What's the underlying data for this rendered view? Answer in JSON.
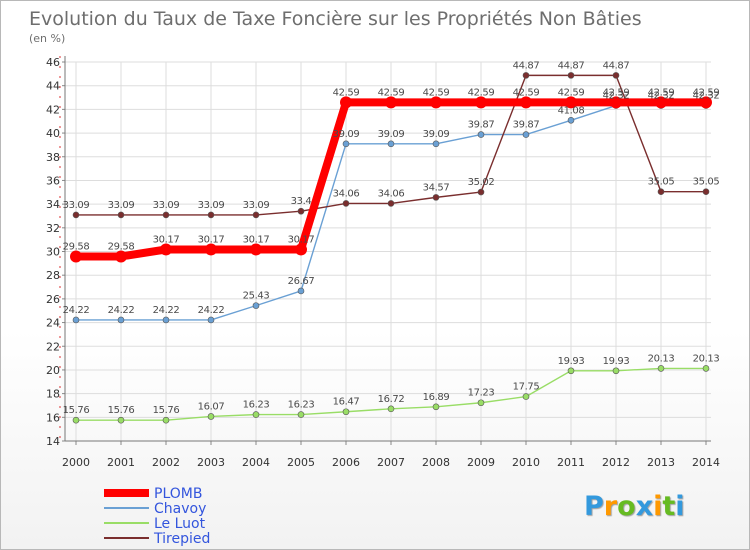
{
  "chart_data": {
    "type": "line",
    "title": "Evolution du Taux de Taxe Foncière sur les Propriétés Non Bâties",
    "ylabel": "(en %)",
    "x": [
      "2000",
      "2001",
      "2002",
      "2003",
      "2004",
      "2005",
      "2006",
      "2007",
      "2008",
      "2009",
      "2010",
      "2011",
      "2012",
      "2013",
      "2014"
    ],
    "ylim": [
      14,
      46
    ],
    "yticks": [
      14,
      16,
      18,
      20,
      22,
      24,
      26,
      28,
      30,
      32,
      34,
      36,
      38,
      40,
      42,
      44,
      46
    ],
    "grid": true,
    "legend_position": "bottom-left",
    "series": [
      {
        "name": "PLOMB",
        "color": "#ff0000",
        "values": [
          29.58,
          29.58,
          30.17,
          30.17,
          30.17,
          30.17,
          42.59,
          42.59,
          42.59,
          42.59,
          42.59,
          42.59,
          42.59,
          42.59,
          42.59
        ],
        "labels": [
          "29.58",
          "29.58",
          "30.17",
          "30.17",
          "30.17",
          "30.17",
          "42.59",
          "42.59",
          "42.59",
          "42.59",
          "42.59",
          "42.59",
          "42.59",
          "42.59",
          "42.59"
        ]
      },
      {
        "name": "Chavoy",
        "color": "#6aa0d4",
        "values": [
          24.22,
          24.22,
          24.22,
          24.22,
          25.43,
          26.67,
          39.09,
          39.09,
          39.09,
          39.87,
          39.87,
          41.08,
          42.32,
          42.32,
          42.32
        ],
        "labels": [
          "24.22",
          "24.22",
          "24.22",
          "24.22",
          "25.43",
          "26.67",
          "39.09",
          "39.09",
          "39.09",
          "39.87",
          "39.87",
          "41.08",
          "42.32",
          "42.32",
          "42.32"
        ]
      },
      {
        "name": "Le Luot",
        "color": "#99dd66",
        "values": [
          15.76,
          15.76,
          15.76,
          16.07,
          16.23,
          16.23,
          16.47,
          16.72,
          16.89,
          17.23,
          17.75,
          19.93,
          19.93,
          20.13,
          20.13
        ],
        "labels": [
          "15.76",
          "15.76",
          "15.76",
          "16.07",
          "16.23",
          "16.23",
          "16.47",
          "16.72",
          "16.89",
          "17.23",
          "17.75",
          "19.93",
          "19.93",
          "20.13",
          "20.13"
        ]
      },
      {
        "name": "Tirepied",
        "color": "#7a2e2e",
        "values": [
          33.09,
          33.09,
          33.09,
          33.09,
          33.09,
          33.4,
          34.06,
          34.06,
          34.57,
          35.02,
          44.87,
          44.87,
          44.87,
          35.05,
          35.05
        ],
        "labels": [
          "33.09",
          "33.09",
          "33.09",
          "33.09",
          "33.09",
          "33.4",
          "34.06",
          "34.06",
          "34.57",
          "35.02",
          "44.87",
          "44.87",
          "44.87",
          "35.05",
          "35.05"
        ]
      }
    ]
  },
  "legend": [
    {
      "name": "PLOMB",
      "text_color": "#3355dd",
      "line_color": "#ff0000"
    },
    {
      "name": "Chavoy",
      "text_color": "#3355dd",
      "line_color": "#6aa0d4"
    },
    {
      "name": "Le Luot",
      "text_color": "#3355dd",
      "line_color": "#99dd66"
    },
    {
      "name": "Tirepied",
      "text_color": "#3355dd",
      "line_color": "#7a2e2e"
    }
  ],
  "logo": {
    "letters": [
      "P",
      "r",
      "o",
      "x",
      "i",
      "t",
      "i"
    ],
    "colors": [
      "#3399dd",
      "#ff9900",
      "#66bb22",
      "#3399dd",
      "#ff9900",
      "#66bb22",
      "#3399dd"
    ]
  }
}
